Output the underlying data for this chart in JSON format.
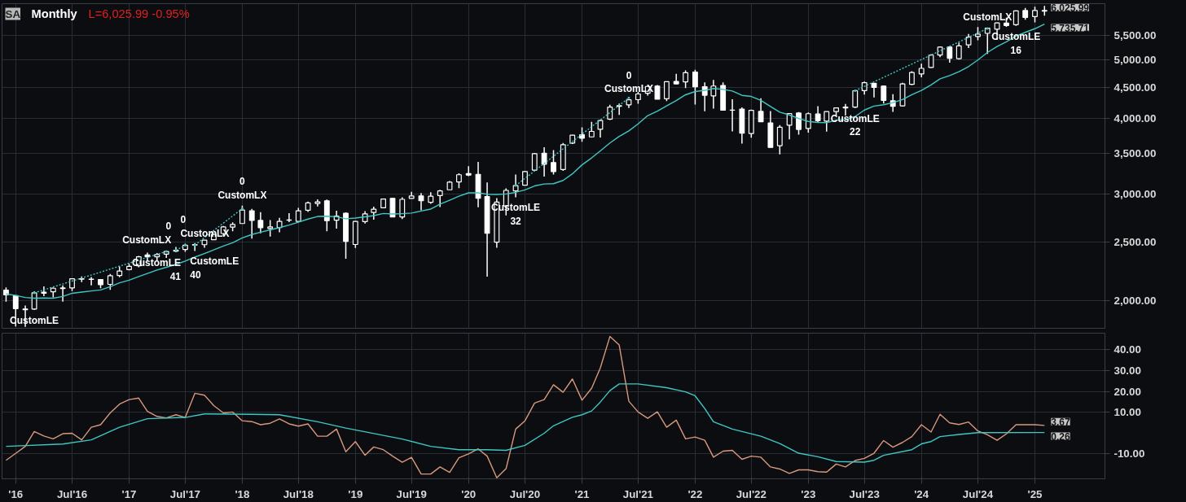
{
  "chart_data": [
    {
      "type": "candlestick",
      "title": "Monthly",
      "subtitle": "L=6,025.99 -0.95%",
      "color": "#ffffff",
      "log": true,
      "grid": true,
      "tick_labels": "y",
      "x": [
        "2015-12",
        "2016-01",
        "2016-02",
        "2016-03",
        "2016-04",
        "2016-05",
        "2016-06",
        "2016-07",
        "2016-08",
        "2016-09",
        "2016-10",
        "2016-11",
        "2016-12",
        "2017-01",
        "2017-02",
        "2017-03",
        "2017-04",
        "2017-05",
        "2017-06",
        "2017-07",
        "2017-08",
        "2017-09",
        "2017-10",
        "2017-11",
        "2017-12",
        "2018-01",
        "2018-02",
        "2018-03",
        "2018-04",
        "2018-05",
        "2018-06",
        "2018-07",
        "2018-08",
        "2018-09",
        "2018-10",
        "2018-11",
        "2018-12",
        "2019-01",
        "2019-02",
        "2019-03",
        "2019-04",
        "2019-05",
        "2019-06",
        "2019-07",
        "2019-08",
        "2019-09",
        "2019-10",
        "2019-11",
        "2019-12",
        "2020-01",
        "2020-02",
        "2020-03",
        "2020-04",
        "2020-05",
        "2020-06",
        "2020-07",
        "2020-08",
        "2020-09",
        "2020-10",
        "2020-11",
        "2020-12",
        "2021-01",
        "2021-02",
        "2021-03",
        "2021-04",
        "2021-05",
        "2021-06",
        "2021-07",
        "2021-08",
        "2021-09",
        "2021-10",
        "2021-11",
        "2021-12",
        "2022-01",
        "2022-02",
        "2022-03",
        "2022-04",
        "2022-05",
        "2022-06",
        "2022-07",
        "2022-08",
        "2022-09",
        "2022-10",
        "2022-11",
        "2022-12",
        "2023-01",
        "2023-02",
        "2023-03",
        "2023-04",
        "2023-05",
        "2023-06",
        "2023-07",
        "2023-08",
        "2023-09",
        "2023-10",
        "2023-11",
        "2023-12",
        "2024-01",
        "2024-02",
        "2024-03",
        "2024-04",
        "2024-05",
        "2024-06",
        "2024-07",
        "2024-08",
        "2024-09",
        "2024-10",
        "2024-11",
        "2024-12",
        "2025-01",
        "2025-02"
      ],
      "ohlc": [
        [
          2082,
          2104,
          1993,
          2044
        ],
        [
          2038,
          2038,
          1812,
          1940
        ],
        [
          1937,
          1963,
          1810,
          1932
        ],
        [
          1937,
          2073,
          1932,
          2060
        ],
        [
          2057,
          2111,
          2034,
          2065
        ],
        [
          2068,
          2103,
          2025,
          2097
        ],
        [
          2094,
          2120,
          1992,
          2099
        ],
        [
          2099,
          2178,
          2075,
          2174
        ],
        [
          2174,
          2194,
          2147,
          2171
        ],
        [
          2171,
          2188,
          2120,
          2168
        ],
        [
          2168,
          2169,
          2097,
          2126
        ],
        [
          2128,
          2214,
          2084,
          2199
        ],
        [
          2201,
          2278,
          2187,
          2239
        ],
        [
          2251,
          2301,
          2245,
          2279
        ],
        [
          2285,
          2371,
          2271,
          2364
        ],
        [
          2381,
          2401,
          2323,
          2363
        ],
        [
          2363,
          2398,
          2329,
          2384
        ],
        [
          2388,
          2418,
          2353,
          2412
        ],
        [
          2415,
          2454,
          2405,
          2423
        ],
        [
          2431,
          2484,
          2408,
          2470
        ],
        [
          2477,
          2491,
          2417,
          2472
        ],
        [
          2475,
          2520,
          2446,
          2519
        ],
        [
          2522,
          2582,
          2520,
          2575
        ],
        [
          2583,
          2657,
          2557,
          2648
        ],
        [
          2646,
          2695,
          2605,
          2674
        ],
        [
          2683,
          2873,
          2682,
          2824
        ],
        [
          2816,
          2836,
          2533,
          2714
        ],
        [
          2715,
          2801,
          2585,
          2641
        ],
        [
          2633,
          2718,
          2553,
          2648
        ],
        [
          2643,
          2742,
          2594,
          2705
        ],
        [
          2719,
          2791,
          2698,
          2718
        ],
        [
          2705,
          2848,
          2699,
          2816
        ],
        [
          2822,
          2917,
          2803,
          2902
        ],
        [
          2896,
          2941,
          2864,
          2914
        ],
        [
          2926,
          2940,
          2604,
          2712
        ],
        [
          2718,
          2816,
          2631,
          2760
        ],
        [
          2790,
          2800,
          2347,
          2507
        ],
        [
          2477,
          2708,
          2444,
          2704
        ],
        [
          2702,
          2813,
          2682,
          2784
        ],
        [
          2798,
          2860,
          2723,
          2834
        ],
        [
          2848,
          2949,
          2848,
          2946
        ],
        [
          2953,
          2955,
          2750,
          2752
        ],
        [
          2751,
          2964,
          2729,
          2942
        ],
        [
          2953,
          3028,
          2952,
          2980
        ],
        [
          2981,
          3014,
          2822,
          2926
        ],
        [
          2910,
          3022,
          2892,
          2977
        ],
        [
          2984,
          3050,
          2856,
          3038
        ],
        [
          3051,
          3155,
          3050,
          3141
        ],
        [
          3144,
          3248,
          3070,
          3231
        ],
        [
          3245,
          3338,
          3214,
          3226
        ],
        [
          3236,
          3394,
          2855,
          2954
        ],
        [
          2974,
          3137,
          2192,
          2585
        ],
        [
          2499,
          2955,
          2447,
          2912
        ],
        [
          2869,
          3068,
          2767,
          3044
        ],
        [
          3038,
          3233,
          2966,
          3100
        ],
        [
          3105,
          3280,
          3101,
          3271
        ],
        [
          3289,
          3510,
          3284,
          3500
        ],
        [
          3508,
          3588,
          3209,
          3363
        ],
        [
          3385,
          3550,
          3234,
          3270
        ],
        [
          3296,
          3646,
          3280,
          3622
        ],
        [
          3645,
          3760,
          3633,
          3756
        ],
        [
          3764,
          3870,
          3662,
          3714
        ],
        [
          3732,
          3951,
          3725,
          3811
        ],
        [
          3842,
          3984,
          3723,
          3973
        ],
        [
          3993,
          4219,
          3981,
          4181
        ],
        [
          4192,
          4238,
          4057,
          4204
        ],
        [
          4217,
          4302,
          4165,
          4298
        ],
        [
          4301,
          4430,
          4234,
          4395
        ],
        [
          4407,
          4538,
          4367,
          4523
        ],
        [
          4529,
          4546,
          4306,
          4308
        ],
        [
          4317,
          4608,
          4279,
          4605
        ],
        [
          4610,
          4744,
          4560,
          4567
        ],
        [
          4602,
          4808,
          4496,
          4766
        ],
        [
          4778,
          4819,
          4223,
          4516
        ],
        [
          4519,
          4595,
          4115,
          4374
        ],
        [
          4363,
          4637,
          4157,
          4530
        ],
        [
          4540,
          4593,
          4124,
          4132
        ],
        [
          4131,
          4307,
          3811,
          4132
        ],
        [
          4150,
          4177,
          3637,
          3785
        ],
        [
          3781,
          4140,
          3721,
          4130
        ],
        [
          4113,
          4325,
          3955,
          3955
        ],
        [
          3937,
          4119,
          3585,
          3586
        ],
        [
          3609,
          3905,
          3492,
          3872
        ],
        [
          3901,
          4080,
          3699,
          4080
        ],
        [
          4087,
          4101,
          3764,
          3840
        ],
        [
          3853,
          4095,
          3794,
          4077
        ],
        [
          4071,
          4195,
          3943,
          3970
        ],
        [
          3963,
          4110,
          3809,
          4109
        ],
        [
          4109,
          4170,
          4049,
          4169
        ],
        [
          4166,
          4232,
          4048,
          4180
        ],
        [
          4181,
          4458,
          4167,
          4450
        ],
        [
          4451,
          4607,
          4385,
          4589
        ],
        [
          4578,
          4584,
          4336,
          4508
        ],
        [
          4530,
          4541,
          4238,
          4288
        ],
        [
          4284,
          4393,
          4104,
          4194
        ],
        [
          4201,
          4587,
          4197,
          4568
        ],
        [
          4559,
          4793,
          4547,
          4770
        ],
        [
          4745,
          4932,
          4682,
          4846
        ],
        [
          4862,
          5111,
          4853,
          5096
        ],
        [
          5098,
          5265,
          5057,
          5254
        ],
        [
          5257,
          5264,
          4954,
          5036
        ],
        [
          5029,
          5341,
          5012,
          5278
        ],
        [
          5298,
          5524,
          5235,
          5460
        ],
        [
          5471,
          5670,
          5391,
          5522
        ],
        [
          5537,
          5651,
          5120,
          5648
        ],
        [
          5624,
          5767,
          5403,
          5762
        ],
        [
          5757,
          5878,
          5675,
          5705
        ],
        [
          5723,
          6044,
          5696,
          6032
        ],
        [
          6040,
          6099,
          5832,
          5882
        ],
        [
          5903,
          6128,
          5773,
          6041
        ],
        [
          6040,
          6147,
          5924,
          6025.99
        ]
      ],
      "series": [
        {
          "type": "line",
          "color": "#3fc7c4",
          "line_style": "solid",
          "x": [
            "2015-12",
            "2016-01",
            "2016-02",
            "2016-03",
            "2016-04",
            "2016-05",
            "2016-06",
            "2016-07",
            "2016-08",
            "2016-09",
            "2016-10",
            "2016-11",
            "2016-12",
            "2017-01",
            "2017-02",
            "2017-03",
            "2017-04",
            "2017-05",
            "2017-06",
            "2017-07",
            "2017-08",
            "2017-09",
            "2017-10",
            "2017-11",
            "2017-12",
            "2018-01",
            "2018-02",
            "2018-03",
            "2018-04",
            "2018-05",
            "2018-06",
            "2018-07",
            "2018-08",
            "2018-09",
            "2018-10",
            "2018-11",
            "2018-12",
            "2019-01",
            "2019-02",
            "2019-03",
            "2019-04",
            "2019-05",
            "2019-06",
            "2019-07",
            "2019-08",
            "2019-09",
            "2019-10",
            "2019-11",
            "2019-12",
            "2020-01",
            "2020-02",
            "2020-03",
            "2020-04",
            "2020-05",
            "2020-06",
            "2020-07",
            "2020-08",
            "2020-09",
            "2020-10",
            "2020-11",
            "2020-12",
            "2021-01",
            "2021-02",
            "2021-03",
            "2021-04",
            "2021-05",
            "2021-06",
            "2021-07",
            "2021-08",
            "2021-09",
            "2021-10",
            "2021-11",
            "2021-12",
            "2022-01",
            "2022-02",
            "2022-03",
            "2022-04",
            "2022-05",
            "2022-06",
            "2022-07",
            "2022-08",
            "2022-09",
            "2022-10",
            "2022-11",
            "2022-12",
            "2023-01",
            "2023-02",
            "2023-03",
            "2023-04",
            "2023-05",
            "2023-06",
            "2023-07",
            "2023-08",
            "2023-09",
            "2023-10",
            "2023-11",
            "2023-12",
            "2024-01",
            "2024-02",
            "2024-03",
            "2024-04",
            "2024-05",
            "2024-06",
            "2024-07",
            "2024-08",
            "2024-09",
            "2024-10",
            "2024-11",
            "2024-12",
            "2025-01",
            "2025-02"
          ],
          "values": [
            2052,
            2040,
            2024,
            2019,
            2020,
            2019,
            2032,
            2057,
            2066,
            2075,
            2083,
            2109,
            2140,
            2162,
            2192,
            2218,
            2247,
            2271,
            2296,
            2326,
            2361,
            2393,
            2426,
            2463,
            2494,
            2540,
            2573,
            2596,
            2619,
            2642,
            2667,
            2696,
            2729,
            2756,
            2759,
            2753,
            2732,
            2739,
            2752,
            2765,
            2788,
            2782,
            2786,
            2792,
            2814,
            2835,
            2888,
            2932,
            2977,
            3016,
            3017,
            3000,
            2997,
            3003,
            3021,
            3050,
            3096,
            3119,
            3123,
            3162,
            3242,
            3355,
            3445,
            3538,
            3646,
            3739,
            3819,
            3922,
            4048,
            4116,
            4201,
            4287,
            4382,
            4436,
            4456,
            4488,
            4472,
            4445,
            4372,
            4354,
            4289,
            4191,
            4101,
            4058,
            4004,
            3959,
            3943,
            3940,
            3979,
            3984,
            4033,
            4134,
            4197,
            4218,
            4253,
            4303,
            4383,
            4456,
            4549,
            4656,
            4715,
            4784,
            4879,
            5002,
            5148,
            5267,
            5361,
            5479,
            5558,
            5636,
            5735.71
          ]
        },
        {
          "type": "line",
          "color": "#3fc7c4",
          "line_style": "dotted",
          "x": [
            "2016-03",
            "2017-05"
          ],
          "values": [
            2060,
            2412
          ]
        },
        {
          "type": "line",
          "color": "#3fc7c4",
          "line_style": "dotted",
          "x": [
            "2017-06",
            "2017-07"
          ],
          "values": [
            2423,
            2470
          ]
        },
        {
          "type": "line",
          "color": "#3fc7c4",
          "line_style": "dotted",
          "x": [
            "2017-08",
            "2018-01"
          ],
          "values": [
            2472,
            2840
          ]
        },
        {
          "type": "line",
          "color": "#3fc7c4",
          "line_style": "dotted",
          "x": [
            "2020-06",
            "2021-06"
          ],
          "values": [
            3100,
            4330
          ]
        },
        {
          "type": "line",
          "color": "#3fc7c4",
          "line_style": "dotted",
          "x": [
            "2023-06",
            "2024-08"
          ],
          "values": [
            4450,
            5640
          ]
        }
      ],
      "xlim": [
        "2015-11-18",
        "2025-08-15"
      ],
      "ylim": [
        1800,
        6200
      ],
      "xticks": [
        {
          "value": "2016-01",
          "label": null
        },
        {
          "value": "2016-07",
          "label": null
        },
        {
          "value": "2017-01",
          "label": null
        },
        {
          "value": "2017-07",
          "label": null
        },
        {
          "value": "2018-01",
          "label": null
        },
        {
          "value": "2018-07",
          "label": null
        },
        {
          "value": "2019-01",
          "label": null
        },
        {
          "value": "2019-07",
          "label": null
        },
        {
          "value": "2020-01",
          "label": null
        },
        {
          "value": "2020-07",
          "label": null
        },
        {
          "value": "2021-01",
          "label": null
        },
        {
          "value": "2021-07",
          "label": null
        },
        {
          "value": "2022-01",
          "label": null
        },
        {
          "value": "2022-07",
          "label": null
        },
        {
          "value": "2023-01",
          "label": null
        },
        {
          "value": "2023-07",
          "label": null
        },
        {
          "value": "2024-01",
          "label": null
        },
        {
          "value": "2024-07",
          "label": null
        },
        {
          "value": "2025-01",
          "label": null
        }
      ],
      "yticks": [
        {
          "value": 2000,
          "label": "2,000.00"
        },
        {
          "value": 2500,
          "label": "2,500.00"
        },
        {
          "value": 3000,
          "label": "3,000.00"
        },
        {
          "value": 3500,
          "label": "3,500.00"
        },
        {
          "value": 4000,
          "label": "4,000.00"
        },
        {
          "value": 4500,
          "label": "4,500.00"
        },
        {
          "value": 5000,
          "label": "5,000.00"
        },
        {
          "value": 5500,
          "label": "5,500.00"
        }
      ],
      "annotations": [
        "SA",
        {
          "text": "CustomLE",
          "x": "2016-03",
          "y": 1932
        },
        {
          "text": "0\nCustomLX",
          "x": "2017-05",
          "y": 2418
        },
        {
          "text": "CustomLE\n41",
          "x": "2017-06",
          "y": 2405
        },
        {
          "text": "0\nCustomLX",
          "x": "2017-07",
          "y": 2484
        },
        {
          "text": "CustomLE\n40",
          "x": "2017-08",
          "y": 2417
        },
        {
          "text": "0\nCustomLX",
          "x": "2018-01",
          "y": 2873
        },
        {
          "text": "CustomLE\n32",
          "x": "2020-06",
          "y": 2966
        },
        {
          "text": "0\nCustomLX",
          "x": "2021-06",
          "y": 4302
        },
        {
          "text": "CustomLE\n22",
          "x": "2023-06",
          "y": 4167
        },
        {
          "text": "CustomLX",
          "x": "2024-08",
          "y": 5651
        },
        {
          "text": "CustomLE\n16",
          "x": "2024-11",
          "y": 5696
        },
        {
          "text": "6,025.99",
          "x": "2025-02",
          "y": 6025.99
        },
        {
          "text": "5,735.71",
          "x": "2025-02",
          "y": 5735.71
        }
      ]
    },
    {
      "type": "line",
      "grid": true,
      "series": [
        {
          "color": "#d8987c",
          "x": [
            "2015-12",
            "2016-01",
            "2016-02",
            "2016-03",
            "2016-04",
            "2016-05",
            "2016-06",
            "2016-07",
            "2016-08",
            "2016-09",
            "2016-10",
            "2016-11",
            "2016-12",
            "2017-01",
            "2017-02",
            "2017-03",
            "2017-04",
            "2017-05",
            "2017-06",
            "2017-07",
            "2017-08",
            "2017-09",
            "2017-10",
            "2017-11",
            "2017-12",
            "2018-01",
            "2018-02",
            "2018-03",
            "2018-04",
            "2018-05",
            "2018-06",
            "2018-07",
            "2018-08",
            "2018-09",
            "2018-10",
            "2018-11",
            "2018-12",
            "2019-01",
            "2019-02",
            "2019-03",
            "2019-04",
            "2019-05",
            "2019-06",
            "2019-07",
            "2019-08",
            "2019-09",
            "2019-10",
            "2019-11",
            "2019-12",
            "2020-01",
            "2020-02",
            "2020-03",
            "2020-04",
            "2020-05",
            "2020-06",
            "2020-07",
            "2020-08",
            "2020-09",
            "2020-10",
            "2020-11",
            "2020-12",
            "2021-01",
            "2021-02",
            "2021-03",
            "2021-04",
            "2021-05",
            "2021-06",
            "2021-07",
            "2021-08",
            "2021-09",
            "2021-10",
            "2021-11",
            "2021-12",
            "2022-01",
            "2022-02",
            "2022-03",
            "2022-04",
            "2022-05",
            "2022-06",
            "2022-07",
            "2022-08",
            "2022-09",
            "2022-10",
            "2022-11",
            "2022-12",
            "2023-01",
            "2023-02",
            "2023-03",
            "2023-04",
            "2023-05",
            "2023-06",
            "2023-07",
            "2023-08",
            "2023-09",
            "2023-10",
            "2023-11",
            "2023-12",
            "2024-01",
            "2024-02",
            "2024-03",
            "2024-04",
            "2024-05",
            "2024-06",
            "2024-07",
            "2024-08",
            "2024-09",
            "2024-10",
            "2024-11",
            "2024-12",
            "2025-01",
            "2025-02"
          ],
          "values": [
            -13.1,
            -9.8,
            -6.4,
            0.7,
            -1.4,
            -2.8,
            -0.3,
            -0.1,
            -3.3,
            2.8,
            4,
            9.7,
            13.9,
            16.1,
            16.8,
            10.4,
            8,
            7.3,
            8.8,
            7.5,
            19.1,
            18.2,
            13.2,
            9.7,
            10.1,
            5.9,
            5.5,
            4,
            4.7,
            6.8,
            4.4,
            3.3,
            4.4,
            -1.5,
            -1.5,
            1.9,
            -9,
            -4.1,
            -10.7,
            -6.7,
            -8,
            -11.1,
            -14,
            -11.7,
            -19.7,
            -19.7,
            -16.3,
            -18.9,
            -11.9,
            -10,
            -7.6,
            -11.1,
            -21.5,
            -17.1,
            1.9,
            5.9,
            14.4,
            16.1,
            23.2,
            19.6,
            26,
            15.8,
            21.5,
            31.3,
            46.4,
            42.3,
            15.3,
            10.1,
            7.1,
            10.2,
            2.8,
            6.2,
            -2.8,
            -1.9,
            -3.5,
            -11.6,
            -8.7,
            -8.3,
            -12.6,
            -11.1,
            -11.6,
            -16.3,
            -17.3,
            -19.4,
            -17.7,
            -17.7,
            -18.6,
            -18.8,
            -14.9,
            -16.3,
            -13.2,
            -12.2,
            -9.7,
            -3.6,
            -6.8,
            -4.5,
            -1.7,
            4,
            0.5,
            9,
            4.9,
            4.1,
            5.3,
            1,
            -0.8,
            -3.5,
            -0.4,
            4,
            4,
            4,
            3.67
          ]
        },
        {
          "color": "#3fc7c4",
          "x": [
            "2015-12",
            "2016-06",
            "2016-09",
            "2016-12",
            "2017-03",
            "2017-07",
            "2017-09",
            "2018-02",
            "2018-05",
            "2018-09",
            "2018-12",
            "2019-06",
            "2019-09",
            "2019-12",
            "2020-03",
            "2020-05",
            "2020-07",
            "2020-09",
            "2020-10",
            "2020-12",
            "2021-01",
            "2021-02",
            "2021-03",
            "2021-04",
            "2021-05",
            "2021-07",
            "2021-10",
            "2021-12",
            "2022-01",
            "2022-02",
            "2022-03",
            "2022-05",
            "2022-08",
            "2022-10",
            "2022-12",
            "2023-02",
            "2023-04",
            "2023-07",
            "2023-08",
            "2023-09",
            "2023-12",
            "2024-01",
            "2024-02",
            "2024-03",
            "2024-05",
            "2024-07",
            "2025-02"
          ],
          "values": [
            -6.4,
            -5.3,
            -3.3,
            2.8,
            6.9,
            7.5,
            9.2,
            9,
            8.8,
            5.4,
            2.4,
            -2.9,
            -6.4,
            -8,
            -8,
            -8.3,
            -5.9,
            -0.1,
            3.5,
            7.6,
            8.8,
            10.6,
            14.9,
            20.4,
            23.6,
            23.6,
            21.8,
            19.8,
            17.9,
            11.8,
            5.4,
            1.9,
            -1.5,
            -5,
            -9.7,
            -11.4,
            -13.7,
            -14,
            -13.1,
            -10.7,
            -8,
            -5.2,
            -4.1,
            -1.7,
            -0.7,
            0.2,
            0.26
          ]
        }
      ],
      "xlim": [
        "2015-11-18",
        "2025-08-15"
      ],
      "ylim": [
        -22,
        48
      ],
      "xticks": [
        {
          "value": "2016-01",
          "label": "'16"
        },
        {
          "value": "2016-07",
          "label": "Jul'16"
        },
        {
          "value": "2017-01",
          "label": "'17"
        },
        {
          "value": "2017-07",
          "label": "Jul'17"
        },
        {
          "value": "2018-01",
          "label": "'18"
        },
        {
          "value": "2018-07",
          "label": "Jul'18"
        },
        {
          "value": "2019-01",
          "label": "'19"
        },
        {
          "value": "2019-07",
          "label": "Jul'19"
        },
        {
          "value": "2020-01",
          "label": "'20"
        },
        {
          "value": "2020-07",
          "label": "Jul'20"
        },
        {
          "value": "2021-01",
          "label": "'21"
        },
        {
          "value": "2021-07",
          "label": "Jul'21"
        },
        {
          "value": "2022-01",
          "label": "'22"
        },
        {
          "value": "2022-07",
          "label": "Jul'22"
        },
        {
          "value": "2023-01",
          "label": "'23"
        },
        {
          "value": "2023-07",
          "label": "Jul'23"
        },
        {
          "value": "2024-01",
          "label": "'24"
        },
        {
          "value": "2024-07",
          "label": "Jul'24"
        },
        {
          "value": "2025-01",
          "label": "'25"
        }
      ],
      "yticks": [
        {
          "value": -10,
          "label": "-10.00"
        },
        {
          "value": 10,
          "label": "10.00"
        },
        {
          "value": 20,
          "label": "20.00"
        },
        {
          "value": 30,
          "label": "30.00"
        },
        {
          "value": 40,
          "label": "40.00"
        }
      ],
      "annotations": [
        {
          "text": "3.67",
          "x": "2025-02",
          "y": 3.67
        },
        {
          "text": "0.26",
          "x": "2025-02",
          "y": 0.26
        }
      ]
    }
  ]
}
